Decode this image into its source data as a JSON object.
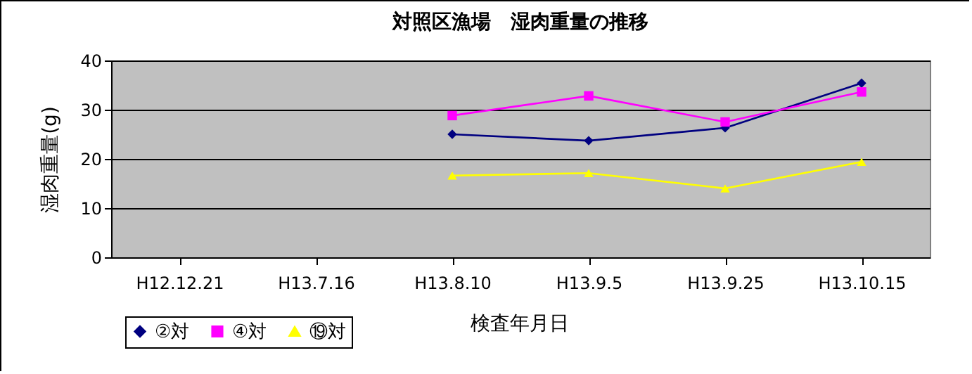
{
  "chart_data": {
    "type": "line",
    "title": "対照区漁場　湿肉重量の推移",
    "xlabel": "検査年月日",
    "ylabel": "湿肉重量(g)",
    "categories": [
      "H12.12.21",
      "H13.7.16",
      "H13.8.10",
      "H13.9.5",
      "H13.9.25",
      "H13.10.15"
    ],
    "series": [
      {
        "name": "②対",
        "color": "#000080",
        "marker": "diamond",
        "values": [
          null,
          null,
          25,
          23.7,
          26.3,
          35.4
        ]
      },
      {
        "name": "④対",
        "color": "#ff00ff",
        "marker": "square",
        "values": [
          null,
          null,
          28.8,
          32.8,
          27.5,
          33.6
        ]
      },
      {
        "name": "⑲対",
        "color": "#ffff00",
        "marker": "triangle",
        "values": [
          null,
          null,
          16.6,
          17.1,
          14,
          19.4
        ]
      }
    ],
    "ylim": [
      0,
      40
    ],
    "yticks": [
      0,
      10,
      20,
      30,
      40
    ],
    "grid": "y",
    "legend": "bottom left",
    "line_style": "solid"
  }
}
